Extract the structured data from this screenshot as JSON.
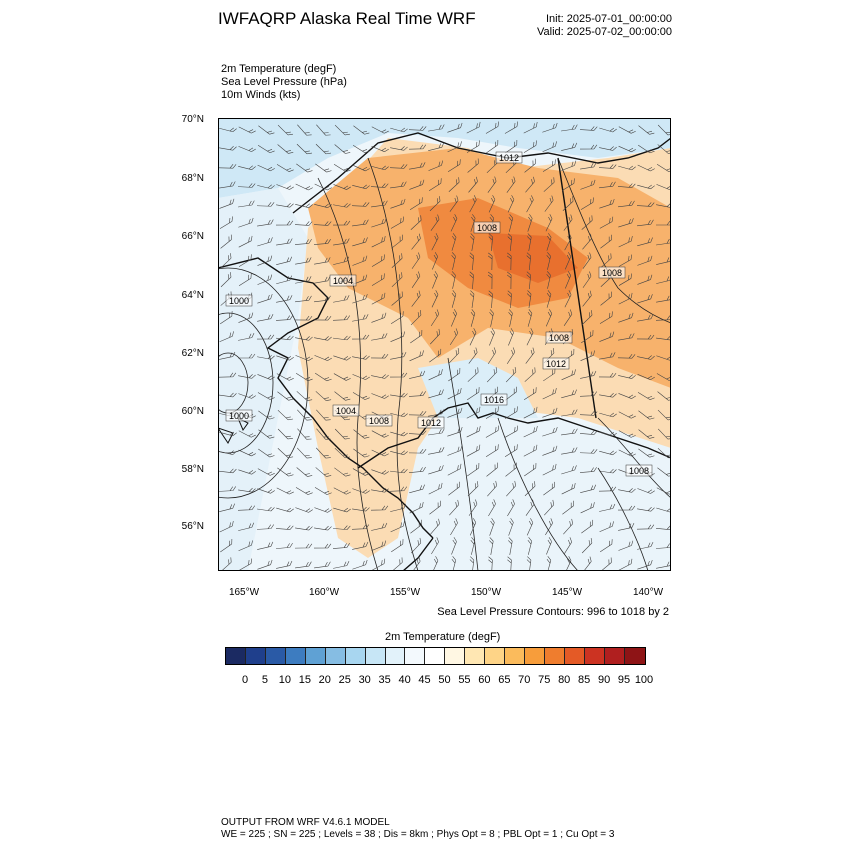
{
  "header": {
    "title": "IWFAQRP Alaska Real Time WRF",
    "init": "Init: 2025-07-01_00:00:00",
    "valid": "Valid: 2025-07-02_00:00:00"
  },
  "fields": [
    "2m Temperature   (degF)",
    "Sea Level Pressure   (hPa)",
    "10m Winds   (kts)"
  ],
  "map": {
    "lat_labels": [
      "70°N",
      "68°N",
      "66°N",
      "64°N",
      "62°N",
      "60°N",
      "58°N",
      "56°N"
    ],
    "lon_labels": [
      "165°W",
      "160°W",
      "155°W",
      "150°W",
      "145°W",
      "140°W"
    ],
    "pressure_labels": [
      "1012",
      "1008",
      "1004",
      "1000",
      "1008",
      "1008",
      "1012",
      "1000",
      "1004",
      "1008",
      "1012",
      "1016",
      "1008"
    ],
    "colors": {
      "ocean_cold": "#cfe8f6",
      "water_cool": "#e6f3fa",
      "land_warm": "#f4a25a",
      "land_hot": "#e8702e",
      "land_mild": "#fbdcb4"
    }
  },
  "contour_info": "Sea Level Pressure Contours: 996 to 1018 by 2",
  "colorbar": {
    "title": "2m Temperature  (degF)",
    "labels": [
      "0",
      "5",
      "10",
      "15",
      "20",
      "25",
      "30",
      "35",
      "40",
      "45",
      "50",
      "55",
      "60",
      "65",
      "70",
      "75",
      "80",
      "85",
      "90",
      "95",
      "100"
    ],
    "colors": [
      "#1b2a62",
      "#1f3f8c",
      "#2a5aa6",
      "#3d7cc0",
      "#5fa1d4",
      "#86bde3",
      "#a8d6f0",
      "#c7e6f6",
      "#e2f2fa",
      "#f3f9fd",
      "#ffffff",
      "#fff7e3",
      "#ffe7b3",
      "#fed487",
      "#fbbb5c",
      "#f79d3b",
      "#ef7d2e",
      "#e45a26",
      "#cc3322",
      "#b01f1f",
      "#8e1416"
    ]
  },
  "footer": {
    "line1": "OUTPUT FROM WRF V4.6.1 MODEL",
    "line2": "WE = 225 ; SN = 225 ; Levels = 38 ; Dis = 8km ; Phys Opt = 8 ; PBL Opt = 1 ; Cu Opt = 3"
  }
}
